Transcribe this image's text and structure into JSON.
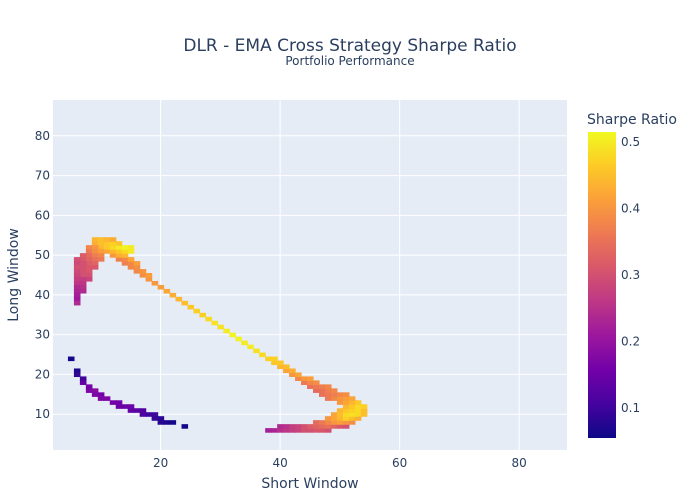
{
  "chart_data": {
    "type": "heatmap",
    "title": "DLR - EMA Cross Strategy Sharpe Ratio",
    "subtitle": "Portfolio Performance",
    "xlabel": "Short Window",
    "ylabel": "Long Window",
    "xlim": [
      2,
      88
    ],
    "ylim": [
      1,
      89
    ],
    "xticks": [
      20,
      40,
      60,
      80
    ],
    "yticks": [
      10,
      20,
      30,
      40,
      50,
      60,
      70,
      80
    ],
    "grid": true,
    "colorbar": {
      "title": "Sharpe Ratio",
      "min": 0.055,
      "max": 0.515,
      "ticks": [
        0.1,
        0.2,
        0.3,
        0.4,
        0.5
      ],
      "colorscale": [
        "#0d0887",
        "#46039f",
        "#7201a8",
        "#9c179e",
        "#bd3786",
        "#d8576b",
        "#ed7953",
        "#fb9f3a",
        "#fdca26",
        "#f0f921"
      ]
    },
    "points": [
      [
        5,
        24,
        0.06
      ],
      [
        6,
        21,
        0.07
      ],
      [
        6,
        20,
        0.09
      ],
      [
        7,
        19,
        0.1
      ],
      [
        7,
        18,
        0.14
      ],
      [
        8,
        17,
        0.16
      ],
      [
        8,
        16,
        0.17
      ],
      [
        9,
        16,
        0.18
      ],
      [
        9,
        15,
        0.17
      ],
      [
        10,
        15,
        0.16
      ],
      [
        10,
        14,
        0.17
      ],
      [
        11,
        14,
        0.17
      ],
      [
        12,
        13,
        0.16
      ],
      [
        13,
        13,
        0.16
      ],
      [
        13,
        12,
        0.15
      ],
      [
        14,
        12,
        0.15
      ],
      [
        15,
        12,
        0.15
      ],
      [
        15,
        11,
        0.14
      ],
      [
        16,
        11,
        0.13
      ],
      [
        17,
        11,
        0.12
      ],
      [
        17,
        10,
        0.12
      ],
      [
        18,
        10,
        0.1
      ],
      [
        19,
        10,
        0.1
      ],
      [
        19,
        9,
        0.09
      ],
      [
        20,
        9,
        0.08
      ],
      [
        20,
        8,
        0.08
      ],
      [
        21,
        8,
        0.07
      ],
      [
        22,
        8,
        0.06
      ],
      [
        24,
        7,
        0.06
      ],
      [
        38,
        6,
        0.22
      ],
      [
        39,
        6,
        0.23
      ],
      [
        40,
        6,
        0.25
      ],
      [
        41,
        6,
        0.26
      ],
      [
        42,
        6,
        0.27
      ],
      [
        43,
        6,
        0.28
      ],
      [
        44,
        6,
        0.3
      ],
      [
        45,
        6,
        0.3
      ],
      [
        46,
        6,
        0.31
      ],
      [
        47,
        6,
        0.31
      ],
      [
        48,
        6,
        0.3
      ],
      [
        40,
        7,
        0.24
      ],
      [
        41,
        7,
        0.25
      ],
      [
        42,
        7,
        0.27
      ],
      [
        43,
        7,
        0.28
      ],
      [
        44,
        7,
        0.3
      ],
      [
        45,
        7,
        0.32
      ],
      [
        46,
        7,
        0.33
      ],
      [
        47,
        7,
        0.34
      ],
      [
        48,
        7,
        0.35
      ],
      [
        49,
        7,
        0.33
      ],
      [
        50,
        7,
        0.31
      ],
      [
        51,
        7,
        0.3
      ],
      [
        46,
        8,
        0.34
      ],
      [
        47,
        8,
        0.36
      ],
      [
        48,
        8,
        0.38
      ],
      [
        49,
        8,
        0.4
      ],
      [
        50,
        8,
        0.41
      ],
      [
        51,
        8,
        0.4
      ],
      [
        52,
        8,
        0.39
      ],
      [
        48,
        9,
        0.4
      ],
      [
        49,
        9,
        0.42
      ],
      [
        50,
        9,
        0.44
      ],
      [
        51,
        9,
        0.47
      ],
      [
        52,
        9,
        0.45
      ],
      [
        53,
        9,
        0.43
      ],
      [
        49,
        10,
        0.42
      ],
      [
        50,
        10,
        0.45
      ],
      [
        51,
        10,
        0.48
      ],
      [
        52,
        10,
        0.49
      ],
      [
        53,
        10,
        0.48
      ],
      [
        54,
        10,
        0.45
      ],
      [
        50,
        11,
        0.44
      ],
      [
        51,
        11,
        0.46
      ],
      [
        52,
        11,
        0.47
      ],
      [
        53,
        11,
        0.48
      ],
      [
        54,
        11,
        0.45
      ],
      [
        51,
        12,
        0.44
      ],
      [
        52,
        12,
        0.46
      ],
      [
        53,
        12,
        0.48
      ],
      [
        54,
        12,
        0.47
      ],
      [
        50,
        13,
        0.4
      ],
      [
        51,
        13,
        0.42
      ],
      [
        52,
        13,
        0.44
      ],
      [
        53,
        13,
        0.46
      ],
      [
        48,
        14,
        0.36
      ],
      [
        49,
        14,
        0.38
      ],
      [
        50,
        14,
        0.4
      ],
      [
        51,
        14,
        0.41
      ],
      [
        52,
        14,
        0.42
      ],
      [
        47,
        15,
        0.35
      ],
      [
        48,
        15,
        0.36
      ],
      [
        49,
        15,
        0.37
      ],
      [
        50,
        15,
        0.38
      ],
      [
        51,
        15,
        0.39
      ],
      [
        46,
        16,
        0.34
      ],
      [
        47,
        16,
        0.35
      ],
      [
        48,
        16,
        0.37
      ],
      [
        49,
        16,
        0.38
      ],
      [
        45,
        17,
        0.35
      ],
      [
        46,
        17,
        0.36
      ],
      [
        47,
        17,
        0.37
      ],
      [
        48,
        17,
        0.38
      ],
      [
        44,
        18,
        0.36
      ],
      [
        45,
        18,
        0.38
      ],
      [
        46,
        18,
        0.39
      ],
      [
        43,
        19,
        0.38
      ],
      [
        44,
        19,
        0.4
      ],
      [
        45,
        19,
        0.41
      ],
      [
        42,
        20,
        0.4
      ],
      [
        43,
        20,
        0.42
      ],
      [
        41,
        21,
        0.42
      ],
      [
        42,
        21,
        0.43
      ],
      [
        40,
        22,
        0.44
      ],
      [
        41,
        22,
        0.45
      ],
      [
        39,
        23,
        0.46
      ],
      [
        40,
        23,
        0.46
      ],
      [
        38,
        24,
        0.47
      ],
      [
        39,
        24,
        0.47
      ],
      [
        37,
        25,
        0.48
      ],
      [
        36,
        26,
        0.49
      ],
      [
        35,
        27,
        0.5
      ],
      [
        34,
        28,
        0.5
      ],
      [
        33,
        29,
        0.51
      ],
      [
        32,
        30,
        0.51
      ],
      [
        31,
        31,
        0.5
      ],
      [
        30,
        32,
        0.49
      ],
      [
        29,
        33,
        0.49
      ],
      [
        28,
        34,
        0.48
      ],
      [
        27,
        35,
        0.47
      ],
      [
        26,
        36,
        0.47
      ],
      [
        25,
        37,
        0.46
      ],
      [
        24,
        38,
        0.45
      ],
      [
        23,
        39,
        0.44
      ],
      [
        22,
        40,
        0.43
      ],
      [
        21,
        41,
        0.42
      ],
      [
        20,
        42,
        0.41
      ],
      [
        19,
        43,
        0.4
      ],
      [
        18,
        44,
        0.4
      ],
      [
        17,
        45,
        0.39
      ],
      [
        16,
        46,
        0.38
      ],
      [
        15,
        47,
        0.38
      ],
      [
        14,
        48,
        0.37
      ],
      [
        15,
        48,
        0.38
      ],
      [
        13,
        49,
        0.37
      ],
      [
        14,
        49,
        0.38
      ],
      [
        16,
        47,
        0.39
      ],
      [
        17,
        46,
        0.4
      ],
      [
        18,
        45,
        0.41
      ],
      [
        12,
        50,
        0.4
      ],
      [
        13,
        50,
        0.43
      ],
      [
        14,
        50,
        0.44
      ],
      [
        15,
        49,
        0.42
      ],
      [
        16,
        48,
        0.41
      ],
      [
        11,
        51,
        0.42
      ],
      [
        12,
        51,
        0.44
      ],
      [
        13,
        51,
        0.46
      ],
      [
        14,
        51,
        0.48
      ],
      [
        15,
        51,
        0.5
      ],
      [
        10,
        52,
        0.44
      ],
      [
        11,
        52,
        0.46
      ],
      [
        12,
        52,
        0.48
      ],
      [
        13,
        52,
        0.5
      ],
      [
        14,
        52,
        0.51
      ],
      [
        15,
        52,
        0.5
      ],
      [
        9,
        53,
        0.43
      ],
      [
        10,
        53,
        0.45
      ],
      [
        11,
        53,
        0.46
      ],
      [
        12,
        53,
        0.47
      ],
      [
        13,
        53,
        0.46
      ],
      [
        9,
        54,
        0.44
      ],
      [
        10,
        54,
        0.45
      ],
      [
        11,
        54,
        0.44
      ],
      [
        12,
        54,
        0.43
      ],
      [
        8,
        52,
        0.38
      ],
      [
        8,
        51,
        0.36
      ],
      [
        8,
        50,
        0.34
      ],
      [
        9,
        52,
        0.4
      ],
      [
        9,
        51,
        0.39
      ],
      [
        9,
        50,
        0.37
      ],
      [
        10,
        51,
        0.41
      ],
      [
        10,
        50,
        0.38
      ],
      [
        7,
        50,
        0.32
      ],
      [
        7,
        49,
        0.31
      ],
      [
        8,
        49,
        0.33
      ],
      [
        8,
        48,
        0.32
      ],
      [
        9,
        49,
        0.35
      ],
      [
        9,
        48,
        0.33
      ],
      [
        10,
        49,
        0.36
      ],
      [
        6,
        49,
        0.3
      ],
      [
        6,
        48,
        0.29
      ],
      [
        7,
        48,
        0.3
      ],
      [
        7,
        47,
        0.3
      ],
      [
        8,
        47,
        0.31
      ],
      [
        9,
        47,
        0.31
      ],
      [
        6,
        47,
        0.3
      ],
      [
        6,
        46,
        0.29
      ],
      [
        7,
        46,
        0.3
      ],
      [
        8,
        46,
        0.31
      ],
      [
        8,
        45,
        0.3
      ],
      [
        7,
        45,
        0.3
      ],
      [
        6,
        45,
        0.28
      ],
      [
        6,
        44,
        0.27
      ],
      [
        7,
        44,
        0.27
      ],
      [
        8,
        44,
        0.28
      ],
      [
        6,
        43,
        0.26
      ],
      [
        7,
        43,
        0.26
      ],
      [
        6,
        42,
        0.24
      ],
      [
        7,
        42,
        0.25
      ],
      [
        6,
        41,
        0.23
      ],
      [
        7,
        41,
        0.24
      ],
      [
        6,
        40,
        0.22
      ],
      [
        6,
        39,
        0.21
      ],
      [
        6,
        38,
        0.24
      ]
    ]
  }
}
